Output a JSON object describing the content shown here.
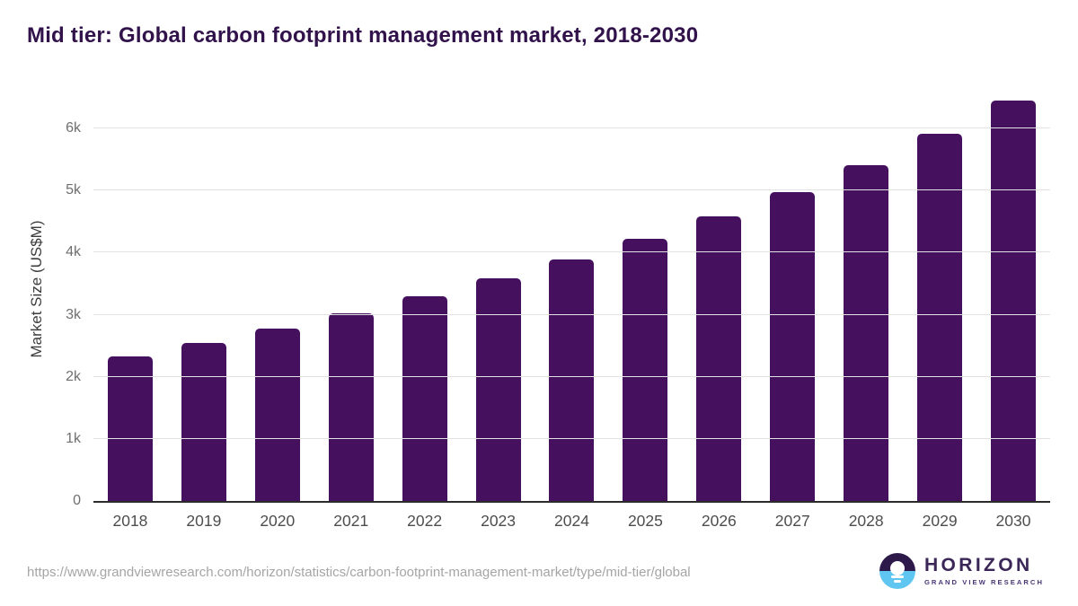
{
  "title": "Mid tier: Global carbon footprint management market, 2018-2030",
  "chart_data": {
    "type": "bar",
    "title": "Mid tier: Global carbon footprint management market, 2018-2030",
    "categories": [
      "2018",
      "2019",
      "2020",
      "2021",
      "2022",
      "2023",
      "2024",
      "2025",
      "2026",
      "2027",
      "2028",
      "2029",
      "2030"
    ],
    "values": [
      2335,
      2550,
      2780,
      3020,
      3290,
      3580,
      3885,
      4220,
      4580,
      4980,
      5405,
      5915,
      6450
    ],
    "series_name": "Market Size",
    "xlabel": "",
    "ylabel": "Market Size (US$M)",
    "ylim": [
      0,
      6700
    ],
    "ytick_values": [
      0,
      1000,
      2000,
      3000,
      4000,
      5000,
      6000
    ],
    "ytick_labels": [
      "0",
      "1k",
      "2k",
      "3k",
      "4k",
      "5k",
      "6k"
    ],
    "grid": true,
    "legend": "none",
    "bar_color": "#45105e"
  },
  "colors": {
    "bar": "#45105e",
    "title_text": "#31124b",
    "axis_line": "#2b2b2b",
    "gridline": "#e2e2e2",
    "y_tick_label": "#6f6f6f",
    "x_tick_label": "#4d4d4d",
    "url_text": "#a5a5a5",
    "logo_purple": "#2e1a4a",
    "logo_blue": "#5ec6f0",
    "logo_text": "#3a2757"
  },
  "footer": {
    "source_url": "https://www.grandviewresearch.com/horizon/statistics/carbon-footprint-management-market/type/mid-tier/global",
    "logo": {
      "title": "HORIZON",
      "subtitle": "GRAND VIEW RESEARCH"
    }
  }
}
